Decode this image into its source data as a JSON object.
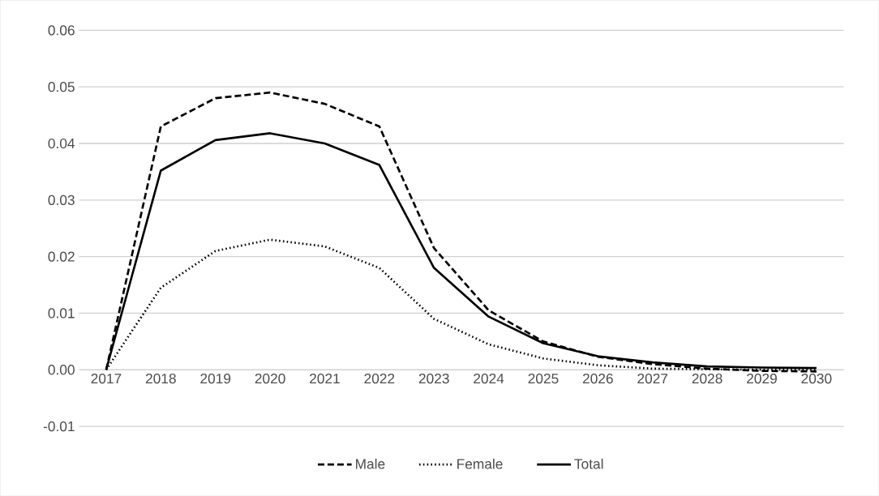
{
  "chart_data": {
    "type": "line",
    "categories": [
      "2017",
      "2018",
      "2019",
      "2020",
      "2021",
      "2022",
      "2023",
      "2024",
      "2025",
      "2026",
      "2027",
      "2028",
      "2029",
      "2030"
    ],
    "series": [
      {
        "name": "Male",
        "color": "#000000",
        "line_style": "dashed",
        "values": [
          0,
          0.043,
          0.048,
          0.049,
          0.047,
          0.043,
          0.0215,
          0.0105,
          0.005,
          0.0023,
          0.001,
          0.0002,
          -0.0002,
          -0.0003
        ]
      },
      {
        "name": "Female",
        "color": "#000000",
        "line_style": "dotted",
        "values": [
          0,
          0.0145,
          0.021,
          0.023,
          0.0218,
          0.018,
          0.009,
          0.0045,
          0.002,
          0.0008,
          0.0002,
          0.0001,
          0,
          0
        ]
      },
      {
        "name": "Total",
        "color": "#000000",
        "line_style": "solid",
        "values": [
          0,
          0.0352,
          0.0406,
          0.0418,
          0.04,
          0.0362,
          0.018,
          0.0094,
          0.0047,
          0.0024,
          0.0013,
          0.0006,
          0.0004,
          0.0003
        ]
      }
    ],
    "ylim": [
      -0.01,
      0.06
    ],
    "yticks": [
      {
        "value": -0.01,
        "label": "-0.01"
      },
      {
        "value": 0,
        "label": "0.00"
      },
      {
        "value": 0.01,
        "label": "0.01"
      },
      {
        "value": 0.02,
        "label": "0.02"
      },
      {
        "value": 0.03,
        "label": "0.03"
      },
      {
        "value": 0.04,
        "label": "0.04"
      },
      {
        "value": 0.05,
        "label": "0.05"
      },
      {
        "value": 0.06,
        "label": "0.06"
      }
    ],
    "grid": "y",
    "legend": "bottom",
    "marker": "none"
  }
}
